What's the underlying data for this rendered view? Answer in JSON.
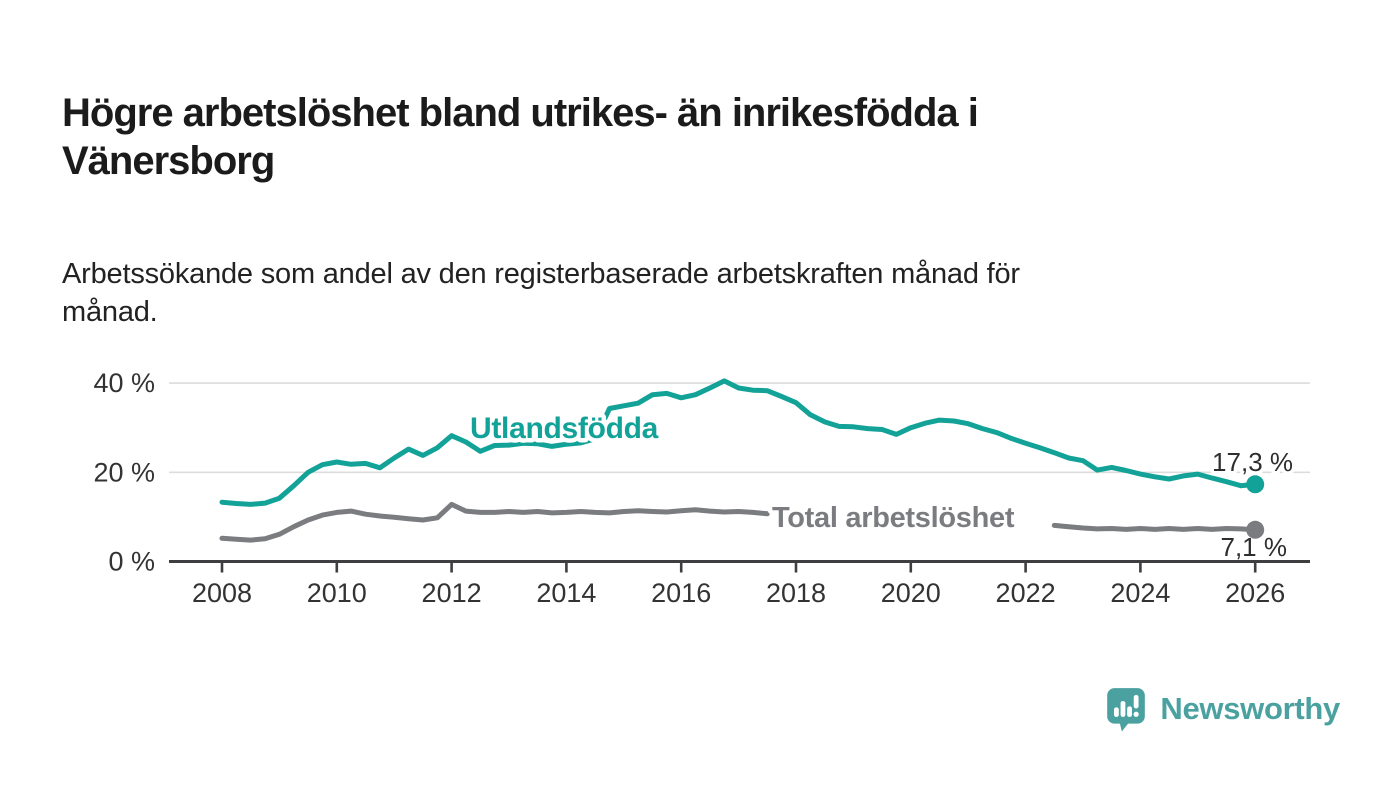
{
  "title": {
    "lines": [
      "Högre arbetslöshet bland utrikes- än inrikesfödda i",
      "Vänersborg"
    ]
  },
  "subtitle": {
    "lines": [
      "Arbetssökande som andel av den registerbaserade arbetskraften månad för",
      "månad."
    ]
  },
  "logo": {
    "text": "Newsworthy",
    "icon": "speech-bubble-bar-chart-icon",
    "color": "#4aa1a0"
  },
  "colors": {
    "accent_teal": "#13a298",
    "neutral_gray": "#7b7c80",
    "text_dark": "#333333",
    "value_label": "#2e2e31",
    "grid": "#dcdcdc",
    "axis": "#3e3e41",
    "background": "#ffffff"
  },
  "chart_data": {
    "type": "line",
    "title": "Högre arbetslöshet bland utrikes- än inrikesfödda i Vänersborg",
    "subtitle": "Arbetssökande som andel av den registerbaserade arbetskraften månad för månad.",
    "ylabel": "%",
    "xlabel": "",
    "ylim": [
      0,
      43
    ],
    "xlim": [
      2007.9,
      2026.9
    ],
    "grid": "horizontal",
    "legend": "inline-labels",
    "yticks": [
      {
        "value": 0,
        "label": "0 %"
      },
      {
        "value": 20,
        "label": "20 %"
      },
      {
        "value": 40,
        "label": "40 %"
      }
    ],
    "xticks": [
      {
        "value": 2008,
        "label": "2008"
      },
      {
        "value": 2010,
        "label": "2010"
      },
      {
        "value": 2012,
        "label": "2012"
      },
      {
        "value": 2014,
        "label": "2014"
      },
      {
        "value": 2016,
        "label": "2016"
      },
      {
        "value": 2018,
        "label": "2018"
      },
      {
        "value": 2020,
        "label": "2020"
      },
      {
        "value": 2022,
        "label": "2022"
      },
      {
        "value": 2024,
        "label": "2024"
      },
      {
        "value": 2026,
        "label": "2026"
      }
    ],
    "x": [
      2008.0,
      2008.25,
      2008.5,
      2008.75,
      2009.0,
      2009.25,
      2009.5,
      2009.75,
      2010.0,
      2010.25,
      2010.5,
      2010.75,
      2011.0,
      2011.25,
      2011.5,
      2011.75,
      2012.0,
      2012.25,
      2012.5,
      2012.75,
      2013.0,
      2013.25,
      2013.5,
      2013.75,
      2014.0,
      2014.25,
      2014.5,
      2014.75,
      2015.0,
      2015.25,
      2015.5,
      2015.75,
      2016.0,
      2016.25,
      2016.5,
      2016.75,
      2017.0,
      2017.25,
      2017.5,
      2017.75,
      2018.0,
      2018.25,
      2018.5,
      2018.75,
      2019.0,
      2019.25,
      2019.5,
      2019.75,
      2020.0,
      2020.25,
      2020.5,
      2020.75,
      2021.0,
      2021.25,
      2021.5,
      2021.75,
      2022.0,
      2022.25,
      2022.5,
      2022.75,
      2023.0,
      2023.25,
      2023.5,
      2023.75,
      2024.0,
      2024.25,
      2024.5,
      2024.75,
      2025.0,
      2025.25,
      2025.5,
      2025.75,
      2026.0
    ],
    "series": [
      {
        "name": "Utlandsfödda",
        "color": "#13a298",
        "end_value": 17.3,
        "end_label": "17,3 %",
        "values": [
          13.3,
          13.0,
          12.8,
          13.1,
          14.2,
          17.0,
          20.0,
          21.7,
          22.3,
          21.8,
          22.0,
          21.0,
          23.2,
          25.2,
          23.8,
          25.5,
          28.2,
          26.8,
          24.7,
          26.0,
          26.1,
          26.5,
          26.4,
          25.8,
          26.3,
          26.6,
          27.5,
          34.3,
          34.9,
          35.5,
          37.4,
          37.7,
          36.7,
          37.4,
          38.9,
          40.5,
          38.9,
          38.4,
          38.3,
          37.0,
          35.6,
          32.9,
          31.3,
          30.3,
          30.2,
          29.8,
          29.6,
          28.5,
          30.0,
          31.0,
          31.7,
          31.5,
          30.9,
          29.8,
          28.9,
          27.6,
          26.5,
          25.5,
          24.4,
          23.2,
          22.6,
          20.5,
          21.1,
          20.4,
          19.6,
          19.0,
          18.5,
          19.2,
          19.6,
          18.7,
          17.9,
          17.0,
          17.3
        ]
      },
      {
        "name": "Total arbetslöshet",
        "color": "#7b7c80",
        "end_value": 7.1,
        "end_label": "7,1 %",
        "values": [
          5.2,
          5.0,
          4.8,
          5.1,
          6.1,
          7.8,
          9.3,
          10.4,
          11.0,
          11.3,
          10.6,
          10.2,
          9.9,
          9.6,
          9.3,
          9.8,
          12.8,
          11.3,
          11.0,
          11.0,
          11.2,
          11.0,
          11.2,
          10.9,
          11.0,
          11.2,
          11.0,
          10.9,
          11.2,
          11.4,
          11.2,
          11.1,
          11.4,
          11.6,
          11.3,
          11.1,
          11.2,
          11.0,
          10.7,
          null,
          null,
          null,
          null,
          null,
          null,
          null,
          null,
          null,
          null,
          null,
          null,
          null,
          null,
          null,
          null,
          null,
          null,
          null,
          8.1,
          7.8,
          7.5,
          7.3,
          7.4,
          7.2,
          7.4,
          7.2,
          7.4,
          7.2,
          7.4,
          7.2,
          7.4,
          7.3,
          7.1
        ]
      }
    ]
  }
}
